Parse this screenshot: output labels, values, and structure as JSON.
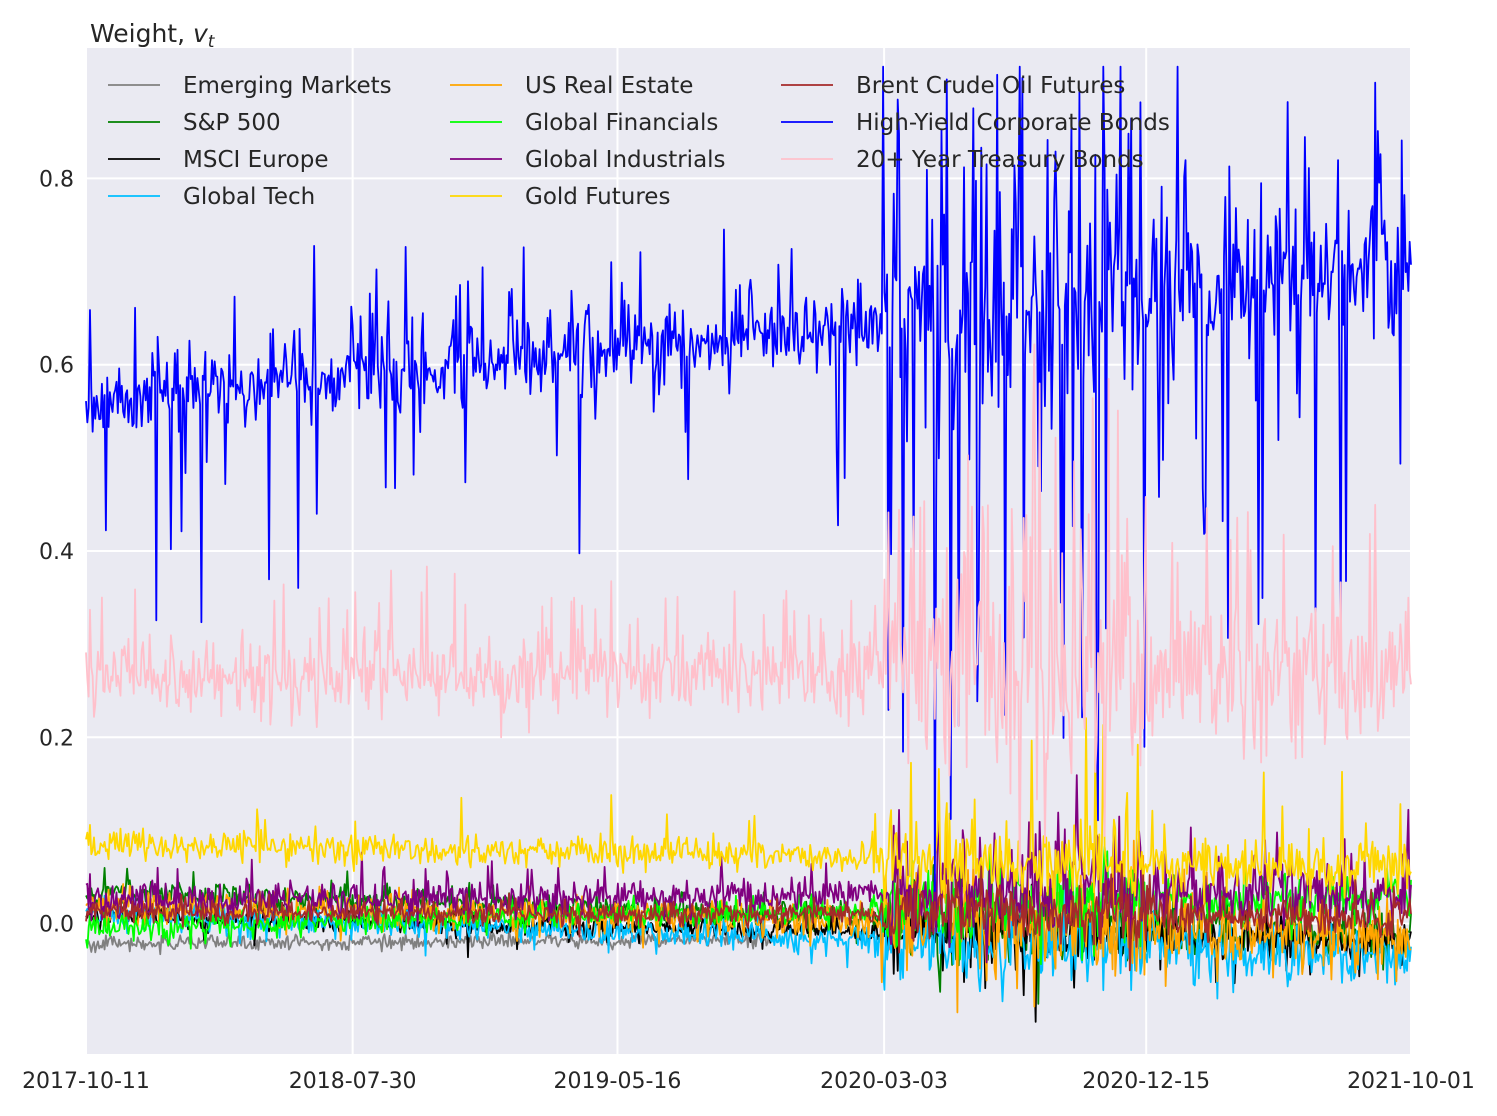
{
  "chart_data": {
    "type": "line",
    "ylabel": "Weight, ",
    "ylabel_symbol": "v",
    "ylabel_subscript": "t",
    "ylim": [
      -0.14,
      0.94
    ],
    "yticks": [
      0.0,
      0.2,
      0.4,
      0.6,
      0.8
    ],
    "ytick_labels": [
      "0.0",
      "0.2",
      "0.4",
      "0.6",
      "0.8"
    ],
    "xlim": [
      "2017-10-11",
      "2021-10-01"
    ],
    "xtick_labels": [
      "2017-10-11",
      "2018-07-30",
      "2019-05-16",
      "2020-03-03",
      "2020-12-15",
      "2021-10-01"
    ],
    "grid": true,
    "legend_position": "top-left",
    "legend_columns": 3,
    "n_points": 1000,
    "regimes": {
      "note_free": true,
      "breaks": [
        0.0,
        0.3,
        0.6,
        0.8,
        1.0
      ],
      "noise_mult": [
        1.0,
        1.0,
        1.0,
        2.6,
        1.8
      ]
    },
    "series": [
      {
        "name": "Emerging Markets",
        "color": "#808080",
        "start": -0.022,
        "end": -0.012,
        "noise": 0.004,
        "spike_up": 0.004,
        "spike_down": 0.006,
        "spike_rate": 0.05,
        "stop": 0.52
      },
      {
        "name": "S&P 500",
        "color": "#008000",
        "start": 0.035,
        "end": -0.015,
        "noise": 0.007,
        "spike_up": 0.02,
        "spike_down": 0.015,
        "spike_rate": 0.08
      },
      {
        "name": "MSCI Europe",
        "color": "#000000",
        "start": 0.008,
        "end": -0.02,
        "noise": 0.006,
        "spike_up": 0.01,
        "spike_down": 0.025,
        "spike_rate": 0.06
      },
      {
        "name": "Global Tech",
        "color": "#00BFFF",
        "start": 0.01,
        "end": -0.035,
        "noise": 0.008,
        "spike_up": 0.01,
        "spike_down": 0.025,
        "spike_rate": 0.06
      },
      {
        "name": "US Real Estate",
        "color": "#FFA500",
        "start": 0.02,
        "end": -0.01,
        "noise": 0.01,
        "spike_up": 0.02,
        "spike_down": 0.03,
        "spike_rate": 0.08
      },
      {
        "name": "Global Financials",
        "color": "#00FF00",
        "start": -0.005,
        "end": 0.03,
        "noise": 0.007,
        "spike_up": 0.02,
        "spike_down": 0.015,
        "spike_rate": 0.07
      },
      {
        "name": "Global Industrials",
        "color": "#800080",
        "start": 0.025,
        "end": 0.035,
        "noise": 0.01,
        "spike_up": 0.04,
        "spike_down": 0.01,
        "spike_rate": 0.08
      },
      {
        "name": "Gold Futures",
        "color": "#FFD700",
        "start": 0.085,
        "end": 0.06,
        "noise": 0.008,
        "spike_up": 0.06,
        "spike_down": 0.01,
        "spike_rate": 0.06
      },
      {
        "name": "Brent Crude Oil Futures",
        "color": "#A52A2A",
        "start": 0.012,
        "end": 0.008,
        "noise": 0.006,
        "spike_up": 0.02,
        "spike_down": 0.01,
        "spike_rate": 0.06
      },
      {
        "name": "High-Yield Corporate Bonds",
        "color": "#0000FF",
        "start": 0.56,
        "end": 0.7,
        "noise": 0.02,
        "spike_up": 0.1,
        "spike_down": 0.22,
        "spike_rate": 0.18
      },
      {
        "name": "20+ Year Treasury Bonds",
        "color": "#FFC0CB",
        "start": 0.265,
        "end": 0.27,
        "noise": 0.02,
        "spike_up": 0.1,
        "spike_down": 0.04,
        "spike_rate": 0.16
      }
    ]
  }
}
